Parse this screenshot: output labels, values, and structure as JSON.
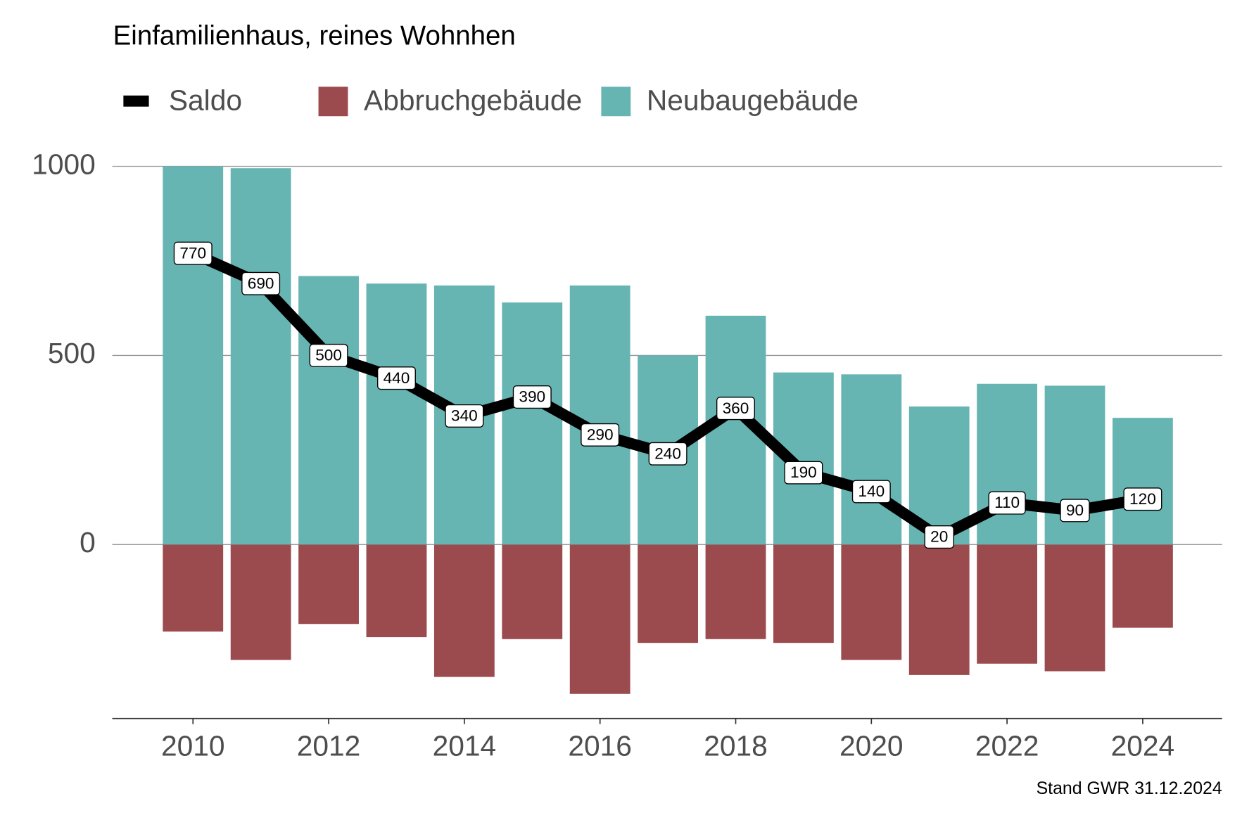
{
  "chart_data": {
    "type": "bar",
    "title": "Einfamilienhaus, reines Wohnhen",
    "caption": "Stand GWR 31.12.2024",
    "x": [
      2010,
      2011,
      2012,
      2013,
      2014,
      2015,
      2016,
      2017,
      2018,
      2019,
      2020,
      2021,
      2022,
      2023,
      2024
    ],
    "series": [
      {
        "name": "Saldo",
        "type": "line",
        "color": "#000000",
        "values": [
          770,
          690,
          500,
          440,
          340,
          390,
          290,
          240,
          360,
          190,
          140,
          20,
          110,
          90,
          120
        ]
      },
      {
        "name": "Abbruchgebäude",
        "type": "bar",
        "color": "#9b4a4d",
        "values": [
          -230,
          -305,
          -210,
          -245,
          -350,
          -250,
          -395,
          -260,
          -250,
          -260,
          -305,
          -345,
          -315,
          -335,
          -220
        ]
      },
      {
        "name": "Neubaugebäude",
        "type": "bar",
        "color": "#66b5b3",
        "values": [
          1000,
          995,
          710,
          690,
          685,
          640,
          685,
          500,
          605,
          455,
          450,
          365,
          425,
          420,
          335
        ]
      }
    ],
    "xlim": [
      2008.81,
      2025.17
    ],
    "xticks": [
      2010,
      2012,
      2014,
      2016,
      2018,
      2020,
      2022,
      2024
    ],
    "ylim": [
      -460,
      1000
    ],
    "yticks": [
      0,
      500,
      1000
    ],
    "grid": true,
    "legend": "top-left"
  }
}
